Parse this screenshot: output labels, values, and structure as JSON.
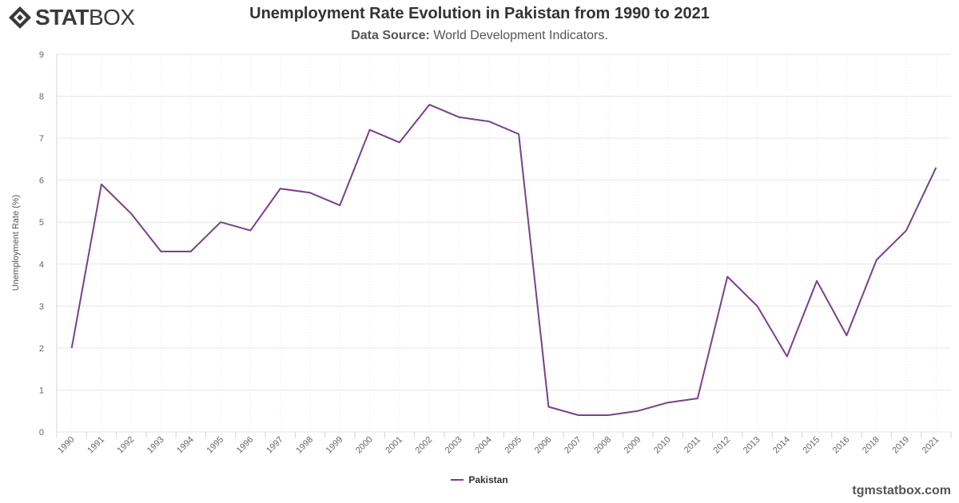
{
  "brand": {
    "bold": "STAT",
    "light": "BOX"
  },
  "title": "Unemployment Rate Evolution in Pakistan from 1990 to 2021",
  "subtitle": {
    "label": "Data Source:",
    "text": "World Development Indicators."
  },
  "credit": "tgmstatbox.com",
  "colors": {
    "line": "#7b3f8c",
    "grid": "#e6e6e6",
    "axis": "#ccd6eb"
  },
  "chart_data": {
    "type": "line",
    "title": "Unemployment Rate Evolution in Pakistan from 1990 to 2021",
    "xlabel": "",
    "ylabel": "Unemployment Rate (%)",
    "ylim": [
      0,
      9
    ],
    "yticks": [
      0,
      1,
      2,
      3,
      4,
      5,
      6,
      7,
      8,
      9
    ],
    "grid": true,
    "legend_position": "bottom-center",
    "categories": [
      "1990",
      "1991",
      "1992",
      "1993",
      "1994",
      "1995",
      "1996",
      "1997",
      "1998",
      "1999",
      "2000",
      "2001",
      "2002",
      "2003",
      "2004",
      "2005",
      "2006",
      "2007",
      "2008",
      "2009",
      "2010",
      "2011",
      "2012",
      "2013",
      "2014",
      "2015",
      "2016",
      "2018",
      "2019",
      "2021"
    ],
    "series": [
      {
        "name": "Pakistan",
        "values": [
          2.0,
          5.9,
          5.2,
          4.3,
          4.3,
          5.0,
          4.8,
          5.8,
          5.7,
          5.4,
          7.2,
          6.9,
          7.8,
          7.5,
          7.4,
          7.1,
          0.6,
          0.4,
          0.4,
          0.5,
          0.7,
          0.8,
          3.7,
          3.0,
          1.8,
          3.6,
          2.3,
          4.1,
          4.8,
          6.3
        ]
      }
    ]
  }
}
